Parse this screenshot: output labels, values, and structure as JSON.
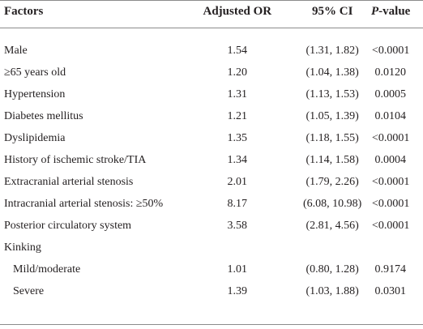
{
  "table": {
    "header": [
      "Factors",
      "Adjusted OR",
      "95% CI",
      "P-value"
    ],
    "rows": [
      [
        "Male",
        "1.54",
        "(1.31, 1.82)",
        "<0.0001"
      ],
      [
        "≥65 years old",
        "1.20",
        "(1.04, 1.38)",
        "0.0120"
      ],
      [
        "Hypertension",
        "1.31",
        "(1.13, 1.53)",
        "0.0005"
      ],
      [
        "Diabetes mellitus",
        "1.21",
        "(1.05, 1.39)",
        "0.0104"
      ],
      [
        "Dyslipidemia",
        "1.35",
        "(1.18, 1.55)",
        "<0.0001"
      ],
      [
        "History of ischemic stroke/TIA",
        "1.34",
        "(1.14, 1.58)",
        "0.0004"
      ],
      [
        "Extracranial arterial stenosis",
        "2.01",
        "(1.79, 2.26)",
        "<0.0001"
      ],
      [
        "Intracranial arterial stenosis: ≥50%",
        "8.17",
        "(6.08, 10.98)",
        "<0.0001"
      ],
      [
        "Posterior circulatory system",
        "3.58",
        "(2.81, 4.56)",
        "<0.0001"
      ]
    ],
    "group": {
      "label": "Kinking",
      "rows": [
        [
          "Mild/moderate",
          "1.01",
          "(0.80, 1.28)",
          "0.9174"
        ],
        [
          "Severe",
          "1.39",
          "(1.03, 1.88)",
          "0.0301"
        ]
      ]
    }
  }
}
